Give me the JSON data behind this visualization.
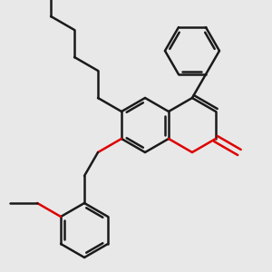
{
  "bg_color": "#e8e8e8",
  "line_color": "#1a1a1a",
  "o_color": "#dd0000",
  "bond_width": 1.8,
  "dbl_off": 0.035,
  "figsize": [
    3.0,
    3.0
  ],
  "dpi": 100,
  "xlim": [
    0,
    3.0
  ],
  "ylim": [
    0,
    3.0
  ]
}
